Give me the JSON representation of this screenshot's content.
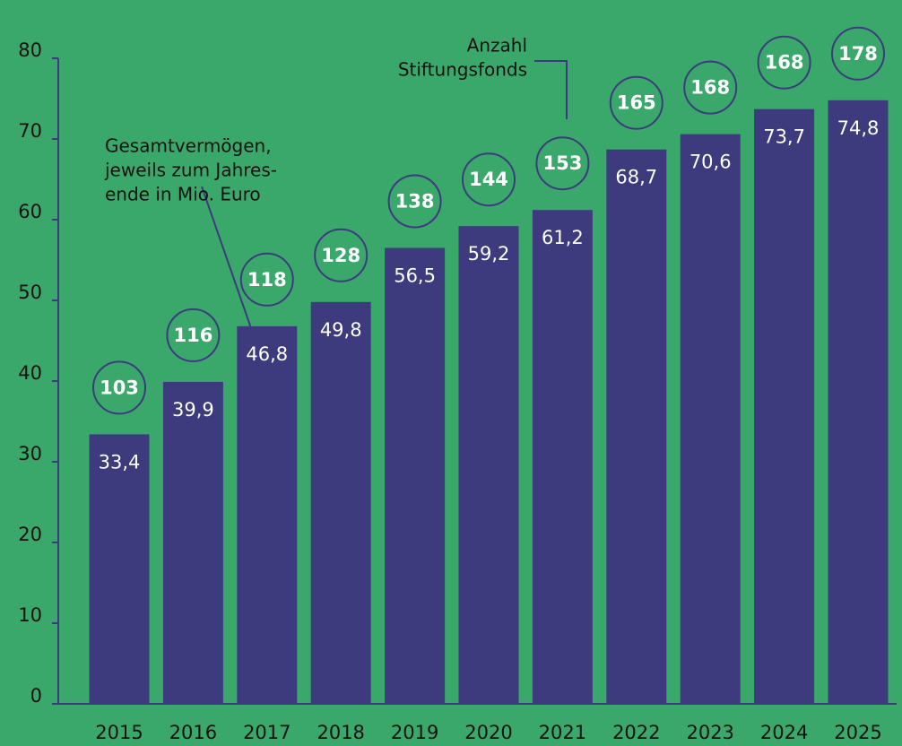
{
  "chart_data": {
    "type": "bar",
    "categories": [
      "2015",
      "2016",
      "2017",
      "2018",
      "2019",
      "2020",
      "2021",
      "2022",
      "2023",
      "2024",
      "2025"
    ],
    "values": [
      33.4,
      39.9,
      46.8,
      49.8,
      56.5,
      59.2,
      61.2,
      68.7,
      70.6,
      73.7,
      74.8
    ],
    "value_labels": [
      "33,4",
      "39,9",
      "46,8",
      "49,8",
      "56,5",
      "59,2",
      "61,2",
      "68,7",
      "70,6",
      "73,7",
      "74,8"
    ],
    "counts": [
      103,
      116,
      118,
      128,
      138,
      144,
      153,
      165,
      168,
      168,
      178
    ],
    "color": "#3d3b7e",
    "background": "#3aa86b",
    "ylim": [
      0,
      80
    ],
    "yticks": [
      0,
      10,
      20,
      30,
      40,
      50,
      60,
      70,
      80
    ],
    "annotations": [
      {
        "lines": [
          "Gesamtvermögen,",
          "jeweils zum Jahres-",
          "ende in Mio. Euro"
        ]
      },
      {
        "lines": [
          "Anzahl",
          "Stiftungsfonds"
        ]
      }
    ]
  }
}
